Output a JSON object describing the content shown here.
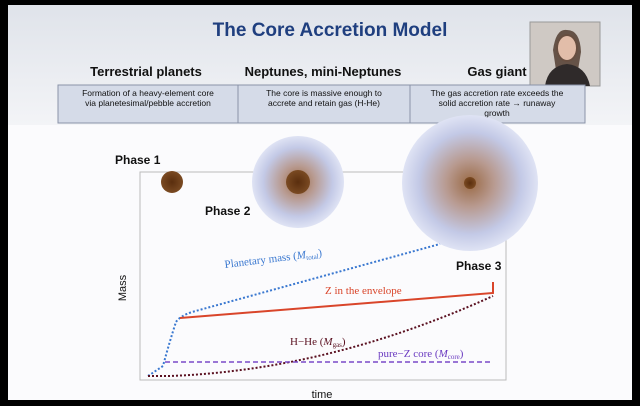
{
  "title": "The Core Accretion Model",
  "columns": [
    {
      "heading": "Terrestrial planets",
      "description": [
        "Formation of a heavy-element core",
        "via  planetesimal/pebble accretion"
      ]
    },
    {
      "heading": "Neptunes, mini-Neptunes",
      "description": [
        "The core is massive enough to",
        "accrete and retain gas (H-He)"
      ]
    },
    {
      "heading": "Gas giant",
      "description": [
        "The gas accretion rate exceeds the",
        "solid accretion rate →  runaway",
        "growth"
      ]
    }
  ],
  "phases": [
    "Phase 1",
    "Phase 2",
    "Phase 3"
  ],
  "plot": {
    "y_label": "Mass",
    "x_label": "time",
    "curves": [
      {
        "prefix": "Planetary mass (",
        "symbol": "M",
        "subscript": "total",
        "suffix": ")"
      },
      {
        "prefix": "Z in the envelope"
      },
      {
        "prefix": "H−He (",
        "symbol": "M",
        "subscript": "gas",
        "suffix": ")"
      },
      {
        "prefix": "pure−Z core (",
        "symbol": "M",
        "subscript": "core",
        "suffix": ")"
      }
    ]
  }
}
